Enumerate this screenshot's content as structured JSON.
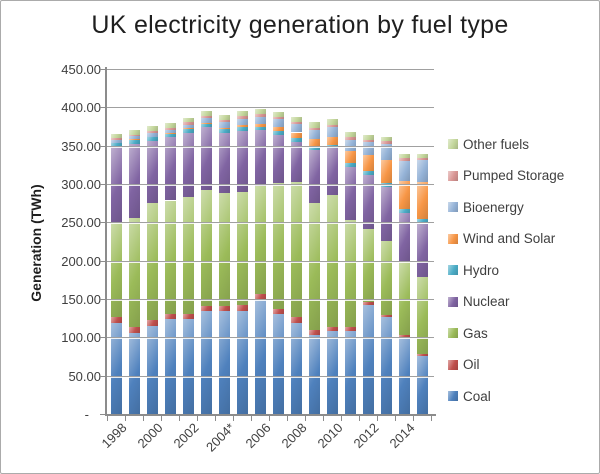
{
  "chart_data": {
    "type": "bar",
    "stacked": true,
    "title": "UK electricity generation by fuel type",
    "ylabel": "Generation (TWh)",
    "ylim": [
      0,
      450
    ],
    "ytick_step": 50,
    "ytick_labels": [
      "450.00",
      "400.00",
      "350.00",
      "300.00",
      "250.00",
      "200.00",
      "150.00",
      "100.00",
      "50.00",
      "-"
    ],
    "grid": true,
    "legend_position": "right",
    "categories": [
      "1998",
      "1999",
      "2000",
      "2001",
      "2002",
      "2003",
      "2004",
      "2005",
      "2006",
      "2007",
      "2008",
      "2009",
      "2010",
      "2011",
      "2012",
      "2013",
      "2014",
      "2015"
    ],
    "xtick_labels": [
      "1998",
      "2000",
      "2002",
      "2004*",
      "2006",
      "2008",
      "2010",
      "2012",
      "2014"
    ],
    "series": [
      {
        "name": "Coal",
        "color": "#4F81BD",
        "values": [
          119,
          106,
          115,
          124,
          124,
          134,
          134,
          135,
          150,
          130,
          119,
          103,
          108,
          108,
          142,
          126,
          100,
          76
        ]
      },
      {
        "name": "Oil",
        "color": "#C0504D",
        "values": [
          8,
          7,
          8,
          6.5,
          6.5,
          6.5,
          6.5,
          7,
          7,
          6.5,
          7,
          6,
          5.5,
          5,
          4.5,
          3.5,
          3,
          2.5
        ]
      },
      {
        "name": "Gas",
        "color": "#9BBB59",
        "values": [
          122,
          143,
          152,
          148,
          152,
          152,
          148,
          147,
          140,
          165,
          177,
          166,
          172,
          140,
          95,
          96,
          95,
          100
        ]
      },
      {
        "name": "Nuclear",
        "color": "#8064A2",
        "values": [
          99,
          96,
          81,
          83,
          84,
          82,
          78,
          80,
          73,
          63,
          52,
          69,
          62,
          69,
          70,
          71,
          64,
          70
        ]
      },
      {
        "name": "Hydro",
        "color": "#4BACC6",
        "values": [
          5.1,
          5.3,
          5,
          4,
          4.8,
          3.2,
          4.8,
          4.9,
          4.6,
          5.1,
          5.1,
          5.2,
          3.6,
          5.7,
          5.3,
          4.7,
          5.9,
          6.3
        ]
      },
      {
        "name": "Wind and Solar",
        "color": "#F79646",
        "values": [
          0.9,
          0.9,
          0.9,
          0.9,
          1.3,
          1.3,
          1.9,
          2.9,
          4.2,
          5.3,
          7.1,
          9.3,
          10.2,
          15.8,
          21.1,
          30.1,
          36.6,
          47.9
        ]
      },
      {
        "name": "Bioenergy",
        "color": "#95B3D7",
        "values": [
          3.5,
          4,
          4.5,
          4.5,
          5,
          6.5,
          7.5,
          8.5,
          9,
          9.5,
          10.5,
          12,
          13,
          14.5,
          16.5,
          21.5,
          26,
          29
        ]
      },
      {
        "name": "Pumped Storage",
        "color": "#D99694",
        "values": [
          2.2,
          2.3,
          2.7,
          2.8,
          2.7,
          2.9,
          2.8,
          3,
          3,
          3,
          3.1,
          3.1,
          3.2,
          2.9,
          2.9,
          2.9,
          2.9,
          2.6
        ]
      },
      {
        "name": "Other fuels",
        "color": "#C3D69B",
        "values": [
          6,
          5.5,
          6,
          6,
          6,
          7,
          7,
          7,
          7,
          7,
          7,
          7,
          7,
          6.5,
          6,
          6,
          5.5,
          5.5
        ]
      }
    ],
    "legend_top_to_bottom": [
      "Other fuels",
      "Pumped Storage",
      "Bioenergy",
      "Wind and Solar",
      "Hydro",
      "Nuclear",
      "Gas",
      "Oil",
      "Coal"
    ]
  }
}
